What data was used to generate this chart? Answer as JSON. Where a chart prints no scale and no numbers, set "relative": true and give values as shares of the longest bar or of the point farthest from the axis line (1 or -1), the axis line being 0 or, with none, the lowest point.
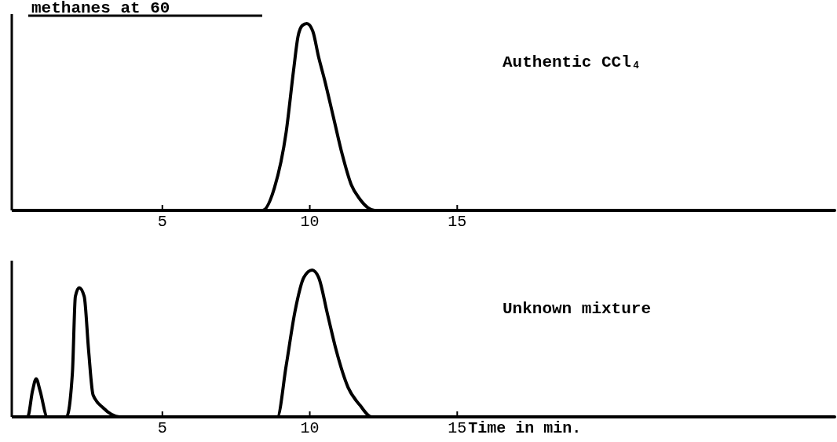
{
  "chart_data": [
    {
      "type": "line",
      "title": "methanes at 60",
      "relative": true,
      "xlim": [
        0,
        27.8
      ],
      "xticks": [
        5,
        10,
        15
      ],
      "tick_labels": "x",
      "marker": "none",
      "line_style": "solid",
      "annotations": [
        "Authentic CCl₄"
      ],
      "series": [
        {
          "color": "#000000",
          "x": [
            0,
            8.4,
            8.8,
            9.2,
            9.45,
            9.6,
            9.75,
            9.9,
            10.1,
            10.3,
            10.5,
            10.8,
            11.1,
            11.4,
            11.7,
            12.2,
            27.8
          ],
          "values": [
            0,
            0,
            0.12,
            0.42,
            0.75,
            0.93,
            0.99,
            1,
            0.96,
            0.82,
            0.7,
            0.5,
            0.3,
            0.14,
            0.06,
            0,
            0
          ]
        }
      ]
    },
    {
      "type": "line",
      "relative": true,
      "xlim": [
        0,
        27.8
      ],
      "xticks": [
        5,
        10,
        15
      ],
      "xlabel": "Time in min.",
      "tick_labels": "x",
      "marker": "none",
      "line_style": "solid",
      "annotations": [
        "Unknown mixture"
      ],
      "series": [
        {
          "color": "#000000",
          "x": [
            0,
            0.43,
            0.6,
            0.72,
            0.85,
            1.1,
            1.75,
            1.95,
            2.05,
            2.18,
            2.35,
            2.5,
            2.65,
            3.0,
            3.55,
            8.9,
            9.2,
            9.5,
            9.8,
            10.08,
            10.3,
            10.6,
            10.9,
            11.3,
            11.7,
            12.1,
            27.8
          ],
          "values": [
            0,
            0,
            0.18,
            0.26,
            0.18,
            0,
            0,
            0.3,
            0.82,
            0.88,
            0.82,
            0.45,
            0.15,
            0.06,
            0,
            0,
            0.35,
            0.72,
            0.95,
            1,
            0.95,
            0.7,
            0.45,
            0.2,
            0.08,
            0,
            0
          ]
        }
      ]
    }
  ]
}
